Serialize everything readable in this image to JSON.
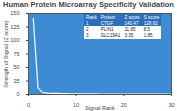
{
  "chart_data": {
    "type": "line",
    "title": "Human Protein Microarray Specificity Validation",
    "x_label": "Signal Rank",
    "y_label": "Strength of Signal (Z score)",
    "x": [
      1,
      2,
      3,
      4,
      5,
      6,
      7,
      8,
      9,
      10,
      11,
      12,
      13,
      14,
      15,
      16,
      17,
      18,
      19,
      20,
      21,
      22,
      23,
      24,
      25,
      26,
      27,
      28,
      29,
      30
    ],
    "values": [
      140.47,
      11.85,
      3.35,
      2.5,
      2.1,
      1.9,
      1.7,
      1.5,
      1.4,
      1.3,
      1.2,
      1.1,
      1.05,
      1.0,
      0.95,
      0.9,
      0.85,
      0.8,
      0.78,
      0.75,
      0.72,
      0.7,
      0.68,
      0.65,
      0.62,
      0.6,
      0.58,
      0.55,
      0.52,
      0.5
    ],
    "color": "#ffffff",
    "xlim": [
      0,
      30
    ],
    "xticks": [
      0,
      10,
      20,
      30
    ],
    "ylim": [
      0,
      150
    ],
    "yticks": [
      0,
      25,
      50,
      75,
      100,
      125,
      150
    ],
    "grid": false,
    "table": {
      "columns": [
        "Rank",
        "Protein",
        "Z score",
        "S score"
      ],
      "rows": [
        [
          "1",
          "CTGF",
          "140.47",
          "128.62"
        ],
        [
          "2",
          "PLIN1",
          "11.85",
          "8.5"
        ],
        [
          "3",
          "SLC19A1",
          "3.35",
          "1.85"
        ]
      ]
    }
  }
}
